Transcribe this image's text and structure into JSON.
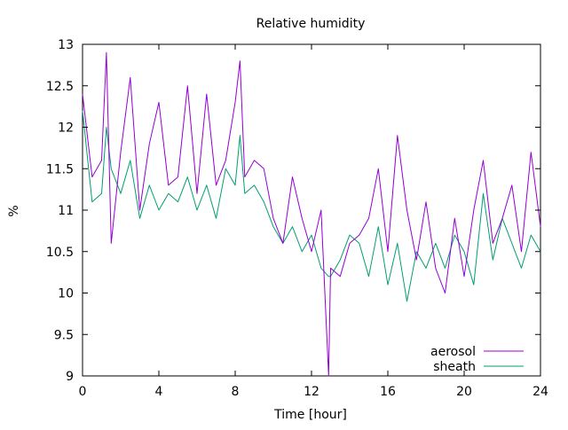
{
  "chart_data": {
    "type": "line",
    "title": "Relative humidity",
    "xlabel": "Time [hour]",
    "ylabel": "%",
    "xlim": [
      0,
      24
    ],
    "ylim": [
      9,
      13
    ],
    "xticks": [
      0,
      4,
      8,
      12,
      16,
      20,
      24
    ],
    "xtick_labels": [
      "0",
      "4",
      "8",
      "12",
      "16",
      "20",
      "24"
    ],
    "yticks": [
      9,
      9.5,
      10,
      10.5,
      11,
      11.5,
      12,
      12.5,
      13
    ],
    "ytick_labels": [
      "9",
      "9.5",
      "10",
      "10.5",
      "11",
      "11.5",
      "12",
      "12.5",
      "13"
    ],
    "grid": false,
    "legend_position": "bottom-right",
    "x": [
      0,
      0.5,
      1,
      1.25,
      1.5,
      2,
      2.5,
      3,
      3.5,
      4,
      4.5,
      5,
      5.5,
      6,
      6.5,
      7,
      7.5,
      8,
      8.25,
      8.5,
      9,
      9.5,
      10,
      10.5,
      11,
      11.5,
      12,
      12.5,
      12.9,
      13,
      13.5,
      14,
      14.5,
      15,
      15.5,
      16,
      16.5,
      17,
      17.5,
      18,
      18.5,
      19,
      19.5,
      20,
      20.5,
      21,
      21.5,
      22,
      22.5,
      23,
      23.5,
      24
    ],
    "series": [
      {
        "name": "aerosol",
        "color": "#9400d3",
        "values": [
          12.4,
          11.4,
          11.6,
          12.9,
          10.6,
          11.7,
          12.6,
          11.0,
          11.8,
          12.3,
          11.3,
          11.4,
          12.5,
          11.2,
          12.4,
          11.3,
          11.6,
          12.3,
          12.8,
          11.4,
          11.6,
          11.5,
          10.9,
          10.6,
          11.4,
          10.9,
          10.5,
          11.0,
          9.0,
          10.3,
          10.2,
          10.6,
          10.7,
          10.9,
          11.5,
          10.5,
          11.9,
          11.0,
          10.4,
          11.1,
          10.3,
          10.0,
          10.9,
          10.2,
          11.0,
          11.6,
          10.6,
          10.9,
          11.3,
          10.5,
          11.7,
          10.8
        ]
      },
      {
        "name": "sheath",
        "color": "#009e73",
        "values": [
          12.2,
          11.1,
          11.2,
          12.0,
          11.5,
          11.2,
          11.6,
          10.9,
          11.3,
          11.0,
          11.2,
          11.1,
          11.4,
          11.0,
          11.3,
          10.9,
          11.5,
          11.3,
          11.9,
          11.2,
          11.3,
          11.1,
          10.8,
          10.6,
          10.8,
          10.5,
          10.7,
          10.3,
          10.2,
          10.2,
          10.4,
          10.7,
          10.6,
          10.2,
          10.8,
          10.1,
          10.6,
          9.9,
          10.5,
          10.3,
          10.6,
          10.3,
          10.7,
          10.5,
          10.1,
          11.2,
          10.4,
          10.9,
          10.6,
          10.3,
          10.7,
          10.5
        ]
      }
    ]
  }
}
